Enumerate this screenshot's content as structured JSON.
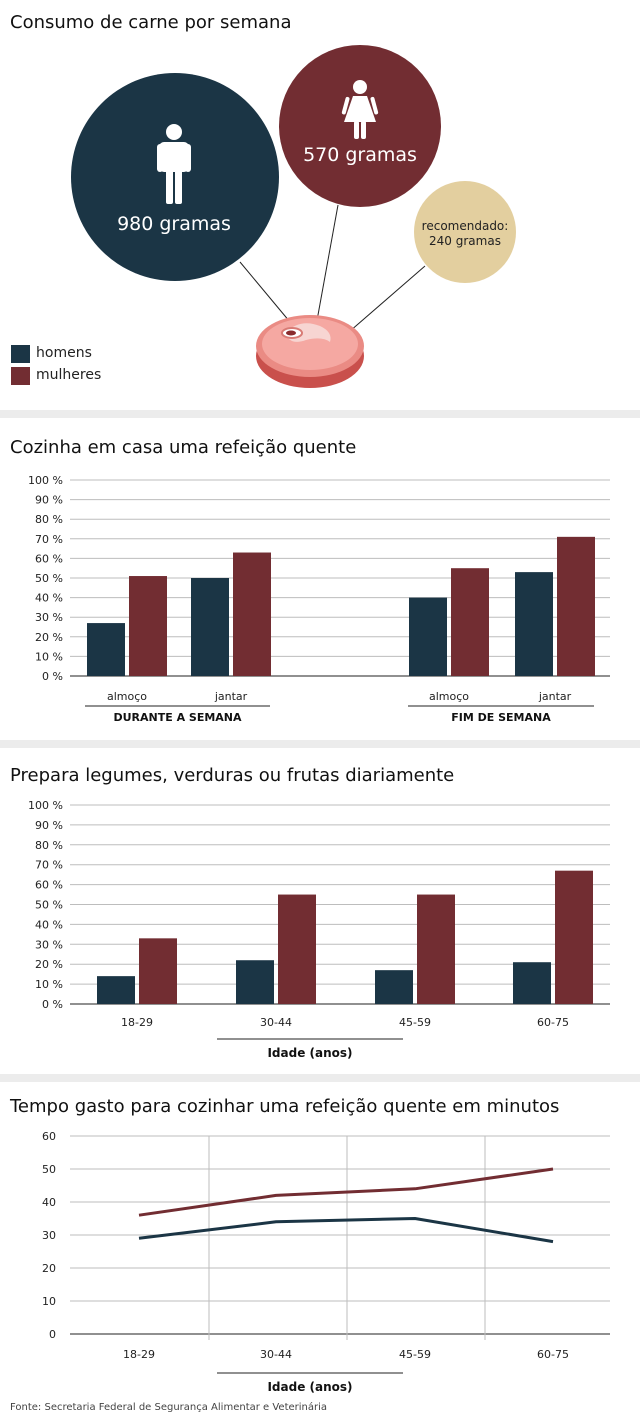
{
  "colors": {
    "men": "#1b3545",
    "women": "#722d32",
    "recommended": "#e3cf9f",
    "grid": "#bdbdbd",
    "axis": "#222222"
  },
  "source": "Fonte: Secretaria Federal de Segurança Alimentar e Veterinária",
  "chart_data": [
    {
      "type": "bubble",
      "title": "Consumo de carne por semana",
      "categories": [
        "homens",
        "mulheres",
        "recomendado"
      ],
      "values": [
        980,
        570,
        240
      ],
      "labels": [
        "980 gramas",
        "570 gramas",
        "recomendado:",
        "240 gramas"
      ],
      "legend": [
        "homens",
        "mulheres"
      ],
      "legend_position": "bottom-left"
    },
    {
      "type": "bar",
      "title": "Cozinha em casa uma refeição quente",
      "groups": [
        "DURANTE A SEMANA",
        "FIM DE SEMANA"
      ],
      "categories": [
        "almoço",
        "jantar",
        "almoço",
        "jantar"
      ],
      "series": [
        {
          "name": "homens",
          "values": [
            27,
            50,
            40,
            53
          ]
        },
        {
          "name": "mulheres",
          "values": [
            51,
            63,
            55,
            71
          ]
        }
      ],
      "yticks": [
        "100 %",
        "90 %",
        "80 %",
        "70 %",
        "60 %",
        "50 %",
        "40 %",
        "30 %",
        "20 %",
        "10 %",
        "0 %"
      ],
      "ylim": [
        0,
        100
      ],
      "grid": true
    },
    {
      "type": "bar",
      "title": "Prepara legumes, verduras ou frutas diariamente",
      "categories": [
        "18-29",
        "30-44",
        "45-59",
        "60-75"
      ],
      "series": [
        {
          "name": "homens",
          "values": [
            14,
            22,
            17,
            21
          ]
        },
        {
          "name": "mulheres",
          "values": [
            33,
            55,
            55,
            67
          ]
        }
      ],
      "xlabel": "Idade (anos)",
      "yticks": [
        "100 %",
        "90 %",
        "80 %",
        "70 %",
        "60 %",
        "50 %",
        "40 %",
        "30 %",
        "20 %",
        "10 %",
        "0 %"
      ],
      "ylim": [
        0,
        100
      ],
      "grid": true
    },
    {
      "type": "line",
      "title": "Tempo gasto para cozinhar uma refeição quente em minutos",
      "categories": [
        "18-29",
        "30-44",
        "45-59",
        "60-75"
      ],
      "series": [
        {
          "name": "homens",
          "values": [
            29,
            34,
            35,
            28
          ]
        },
        {
          "name": "mulheres",
          "values": [
            36,
            42,
            44,
            50
          ]
        }
      ],
      "xlabel": "Idade (anos)",
      "yticks": [
        "60",
        "50",
        "40",
        "30",
        "20",
        "10",
        "0"
      ],
      "ylim": [
        0,
        60
      ],
      "grid": true
    }
  ]
}
